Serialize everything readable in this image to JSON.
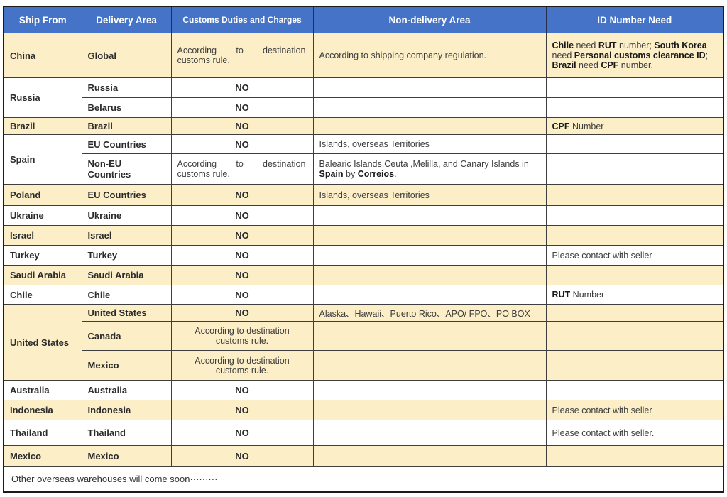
{
  "table": {
    "columns": [
      {
        "key": "ship-from",
        "label": "Ship From"
      },
      {
        "key": "delivery-area",
        "label": "Delivery Area"
      },
      {
        "key": "customs-duties",
        "label": "Customs Duties and Charges"
      },
      {
        "key": "non-delivery-area",
        "label": "Non-delivery Area"
      },
      {
        "key": "id-number-need",
        "label": "ID Number Need"
      }
    ],
    "colors": {
      "header_bg": "#4573C8",
      "header_text": "#ffffff",
      "row_alt_bg": "#FCEFC8",
      "row_bg": "#ffffff",
      "border": "#3e3e3e"
    },
    "rows": [
      {
        "bg": "y",
        "cells": [
          {
            "col": 0,
            "text": "China"
          },
          {
            "col": 1,
            "text": "Global"
          },
          {
            "col": 2,
            "lines": [
              "According to destination",
              "customs rule."
            ],
            "justify": true
          },
          {
            "col": 3,
            "text": "According to shipping company regulation."
          },
          {
            "col": 4,
            "runs": [
              {
                "t": "Chile",
                "b": true
              },
              {
                "t": " need "
              },
              {
                "t": "RUT",
                "b": true
              },
              {
                "t": " number; "
              },
              {
                "t": "South Korea",
                "b": true
              },
              {
                "t": " need "
              },
              {
                "t": "Personal customs clearance ID",
                "b": true
              },
              {
                "t": "; "
              },
              {
                "t": "Brazil",
                "b": true
              },
              {
                "t": " need "
              },
              {
                "t": "CPF",
                "b": true
              },
              {
                "t": " number."
              }
            ]
          }
        ]
      },
      {
        "bg": "w",
        "cells": [
          {
            "col": 0,
            "text": "Russia",
            "rowspan": 2
          },
          {
            "col": 1,
            "text": "Russia"
          },
          {
            "col": 2,
            "text": "NO"
          },
          {
            "col": 3,
            "text": ""
          },
          {
            "col": 4,
            "text": ""
          }
        ]
      },
      {
        "bg": "w",
        "cells": [
          {
            "col": 1,
            "text": "Belarus"
          },
          {
            "col": 2,
            "text": "NO"
          },
          {
            "col": 3,
            "text": ""
          },
          {
            "col": 4,
            "text": ""
          }
        ]
      },
      {
        "bg": "y",
        "cells": [
          {
            "col": 0,
            "text": "Brazil"
          },
          {
            "col": 1,
            "text": "Brazil"
          },
          {
            "col": 2,
            "text": "NO"
          },
          {
            "col": 3,
            "text": ""
          },
          {
            "col": 4,
            "runs": [
              {
                "t": "CPF",
                "b": true
              },
              {
                "t": " Number"
              }
            ]
          }
        ]
      },
      {
        "bg": "w",
        "cells": [
          {
            "col": 0,
            "text": "Spain",
            "rowspan": 2
          },
          {
            "col": 1,
            "text": "EU Countries"
          },
          {
            "col": 2,
            "text": "NO"
          },
          {
            "col": 3,
            "text": "Islands, overseas Territories"
          },
          {
            "col": 4,
            "text": ""
          }
        ]
      },
      {
        "bg": "w",
        "cells": [
          {
            "col": 1,
            "text": "Non-EU Countries"
          },
          {
            "col": 2,
            "lines": [
              "According to destination",
              "customs rule."
            ],
            "justify": true
          },
          {
            "col": 3,
            "runs": [
              {
                "t": "Balearic Islands,Ceuta ,Melilla, and Canary Islands in "
              },
              {
                "t": "Spain",
                "b": true
              },
              {
                "t": " by "
              },
              {
                "t": "Correios",
                "b": true
              },
              {
                "t": "."
              }
            ]
          },
          {
            "col": 4,
            "text": ""
          }
        ]
      },
      {
        "bg": "y",
        "cells": [
          {
            "col": 0,
            "text": "Poland"
          },
          {
            "col": 1,
            "text": "EU Countries"
          },
          {
            "col": 2,
            "text": "NO"
          },
          {
            "col": 3,
            "text": "Islands, overseas Territories"
          },
          {
            "col": 4,
            "text": ""
          }
        ]
      },
      {
        "bg": "w",
        "cells": [
          {
            "col": 0,
            "text": "Ukraine"
          },
          {
            "col": 1,
            "text": "Ukraine"
          },
          {
            "col": 2,
            "text": "NO"
          },
          {
            "col": 3,
            "text": ""
          },
          {
            "col": 4,
            "text": ""
          }
        ]
      },
      {
        "bg": "y",
        "cells": [
          {
            "col": 0,
            "text": "Israel"
          },
          {
            "col": 1,
            "text": "Israel"
          },
          {
            "col": 2,
            "text": "NO"
          },
          {
            "col": 3,
            "text": ""
          },
          {
            "col": 4,
            "text": ""
          }
        ]
      },
      {
        "bg": "w",
        "cells": [
          {
            "col": 0,
            "text": "Turkey"
          },
          {
            "col": 1,
            "text": "Turkey"
          },
          {
            "col": 2,
            "text": "NO"
          },
          {
            "col": 3,
            "text": ""
          },
          {
            "col": 4,
            "text": "Please contact with seller"
          }
        ]
      },
      {
        "bg": "y",
        "cells": [
          {
            "col": 0,
            "text": "Saudi Arabia"
          },
          {
            "col": 1,
            "text": "Saudi Arabia"
          },
          {
            "col": 2,
            "text": "NO"
          },
          {
            "col": 3,
            "text": ""
          },
          {
            "col": 4,
            "text": ""
          }
        ]
      },
      {
        "bg": "w",
        "cells": [
          {
            "col": 0,
            "text": "Chile"
          },
          {
            "col": 1,
            "text": "Chile"
          },
          {
            "col": 2,
            "text": "NO"
          },
          {
            "col": 3,
            "text": ""
          },
          {
            "col": 4,
            "runs": [
              {
                "t": "RUT",
                "b": true
              },
              {
                "t": " Number"
              }
            ]
          }
        ]
      },
      {
        "bg": "y",
        "cells": [
          {
            "col": 0,
            "text": "United States",
            "rowspan": 3
          },
          {
            "col": 1,
            "text": "United States"
          },
          {
            "col": 2,
            "text": "NO"
          },
          {
            "col": 3,
            "text": "Alaska、Hawaii、Puerto Rico、APO/ FPO、PO BOX"
          },
          {
            "col": 4,
            "text": ""
          }
        ]
      },
      {
        "bg": "y",
        "cells": [
          {
            "col": 1,
            "text": "Canada"
          },
          {
            "col": 2,
            "lines": [
              "According to destination",
              "customs rule."
            ],
            "justify": false
          },
          {
            "col": 3,
            "text": ""
          },
          {
            "col": 4,
            "text": ""
          }
        ]
      },
      {
        "bg": "y",
        "cells": [
          {
            "col": 1,
            "text": "Mexico"
          },
          {
            "col": 2,
            "lines": [
              "According to destination",
              "customs rule."
            ],
            "justify": false
          },
          {
            "col": 3,
            "text": ""
          },
          {
            "col": 4,
            "text": ""
          }
        ]
      },
      {
        "bg": "w",
        "cells": [
          {
            "col": 0,
            "text": "Australia"
          },
          {
            "col": 1,
            "text": "Australia"
          },
          {
            "col": 2,
            "text": "NO"
          },
          {
            "col": 3,
            "text": ""
          },
          {
            "col": 4,
            "text": ""
          }
        ]
      },
      {
        "bg": "y",
        "cells": [
          {
            "col": 0,
            "text": "Indonesia"
          },
          {
            "col": 1,
            "text": "Indonesia"
          },
          {
            "col": 2,
            "text": "NO"
          },
          {
            "col": 3,
            "text": ""
          },
          {
            "col": 4,
            "text": "Please contact with seller"
          }
        ]
      },
      {
        "bg": "w",
        "cells": [
          {
            "col": 0,
            "text": "Thailand"
          },
          {
            "col": 1,
            "text": "Thailand"
          },
          {
            "col": 2,
            "text": "NO"
          },
          {
            "col": 3,
            "text": ""
          },
          {
            "col": 4,
            "text": "Please contact with seller."
          }
        ]
      },
      {
        "bg": "y",
        "cells": [
          {
            "col": 0,
            "text": "Mexico"
          },
          {
            "col": 1,
            "text": "Mexico"
          },
          {
            "col": 2,
            "text": "NO"
          },
          {
            "col": 3,
            "text": ""
          },
          {
            "col": 4,
            "text": ""
          }
        ]
      },
      {
        "bg": "w",
        "cells": [
          {
            "col": 0,
            "colspan": 5,
            "text": "Other overseas warehouses will come soon·········",
            "footer": true
          }
        ]
      }
    ]
  }
}
